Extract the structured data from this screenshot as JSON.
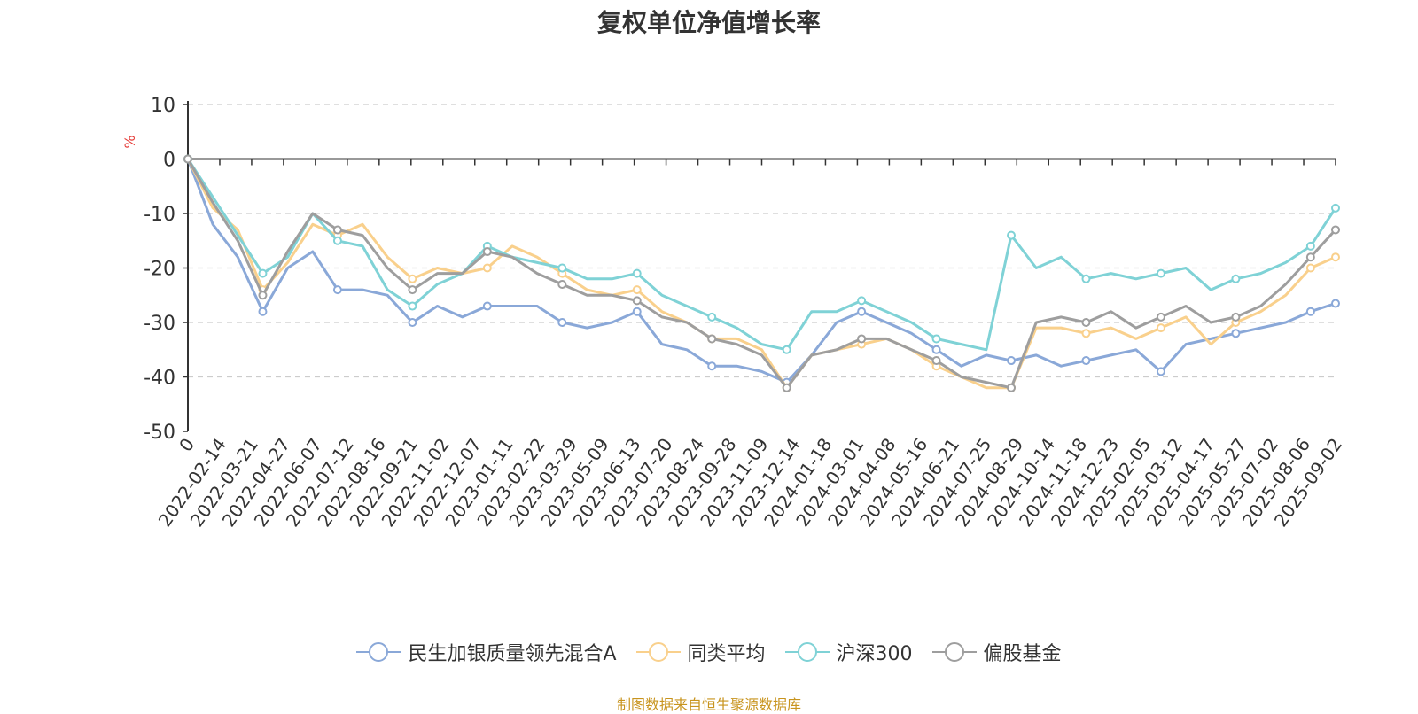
{
  "chart_data": {
    "type": "line",
    "title": "复权单位净值增长率",
    "ylabel": "%",
    "ylim": [
      -50,
      10
    ],
    "y_ticks": [
      10,
      0,
      -10,
      -20,
      -30,
      -40,
      -50
    ],
    "grid": true,
    "legend_position": "bottom",
    "x_ticks": [
      "0",
      "2022-02-14",
      "2022-03-21",
      "2022-04-27",
      "2022-06-07",
      "2022-07-12",
      "2022-08-16",
      "2022-09-21",
      "2022-11-02",
      "2022-12-07",
      "2023-01-11",
      "2023-02-22",
      "2023-03-29",
      "2023-05-09",
      "2023-06-13",
      "2023-07-20",
      "2023-08-24",
      "2023-09-28",
      "2023-11-09",
      "2023-12-14",
      "2024-01-18",
      "2024-03-01",
      "2024-04-08",
      "2024-05-16",
      "2024-06-21",
      "2024-07-25",
      "2024-08-29",
      "2024-10-14",
      "2024-11-18",
      "2024-12-23",
      "2025-02-05",
      "2025-03-12",
      "2025-04-17",
      "2025-05-27",
      "2025-07-02",
      "2025-08-06",
      "2025-09-02"
    ],
    "series": [
      {
        "name": "民生加银质量领先混合A",
        "color": "#8aa8d8",
        "values": [
          0,
          -12,
          -18,
          -28,
          -20,
          -17,
          -24,
          -24,
          -25,
          -30,
          -27,
          -29,
          -27,
          -27,
          -27,
          -30,
          -31,
          -30,
          -28,
          -34,
          -35,
          -38,
          -38,
          -39,
          -41,
          -36,
          -30,
          -28,
          -30,
          -32,
          -35,
          -38,
          -36,
          -37,
          -36,
          -38,
          -37,
          -36,
          -35,
          -39,
          -34,
          -33,
          -32,
          -31,
          -30,
          -28,
          -26.5
        ]
      },
      {
        "name": "同类平均",
        "color": "#f9d08c",
        "values": [
          0,
          -9,
          -13,
          -24,
          -19,
          -12,
          -14,
          -12,
          -18,
          -22,
          -20,
          -21,
          -20,
          -16,
          -18,
          -21,
          -24,
          -25,
          -24,
          -28,
          -30,
          -33,
          -33,
          -35,
          -42,
          -36,
          -35,
          -34,
          -33,
          -35,
          -38,
          -40,
          -42,
          -42,
          -31,
          -31,
          -32,
          -31,
          -33,
          -31,
          -29,
          -34,
          -30,
          -28,
          -25,
          -20,
          -18
        ]
      },
      {
        "name": "沪深300",
        "color": "#7fd2d6",
        "values": [
          0,
          -7,
          -14,
          -21,
          -18,
          -10,
          -15,
          -16,
          -24,
          -27,
          -23,
          -21,
          -16,
          -18,
          -19,
          -20,
          -22,
          -22,
          -21,
          -25,
          -27,
          -29,
          -31,
          -34,
          -35,
          -28,
          -28,
          -26,
          -28,
          -30,
          -33,
          -34,
          -35,
          -14,
          -20,
          -18,
          -22,
          -21,
          -22,
          -21,
          -20,
          -24,
          -22,
          -21,
          -19,
          -16,
          -9
        ]
      },
      {
        "name": "偏股基金",
        "color": "#9e9e9e",
        "values": [
          0,
          -8,
          -15,
          -25,
          -17,
          -10,
          -13,
          -14,
          -20,
          -24,
          -21,
          -21,
          -17,
          -18,
          -21,
          -23,
          -25,
          -25,
          -26,
          -29,
          -30,
          -33,
          -34,
          -36,
          -42,
          -36,
          -35,
          -33,
          -33,
          -35,
          -37,
          -40,
          -41,
          -42,
          -30,
          -29,
          -30,
          -28,
          -31,
          -29,
          -27,
          -30,
          -29,
          -27,
          -23,
          -18,
          -13
        ]
      }
    ]
  },
  "source_text": "制图数据来自恒生聚源数据库"
}
